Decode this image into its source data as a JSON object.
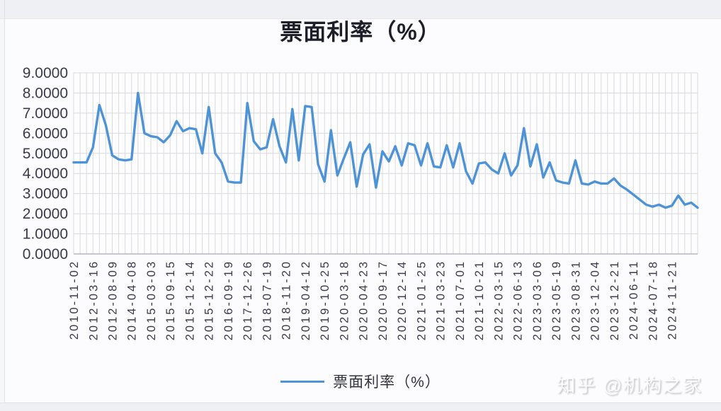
{
  "page": {
    "watermark": "知乎 @机构之家"
  },
  "chart_data": {
    "type": "line",
    "title": "票面利率（%）",
    "xlabel": "",
    "ylabel": "",
    "ylim": [
      0,
      9
    ],
    "grid": true,
    "legend_position": "bottom",
    "y_tick_labels": [
      "0.0000",
      "1.0000",
      "2.0000",
      "3.0000",
      "4.0000",
      "5.0000",
      "6.0000",
      "7.0000",
      "8.0000",
      "9.0000"
    ],
    "x_tick_labels": [
      "2010-11-02",
      "2012-03-16",
      "2012-08-09",
      "2014-04-08",
      "2015-03-03",
      "2015-09-15",
      "2015-12-14",
      "2015-12-22",
      "2016-09-19",
      "2017-12-26",
      "2018-07-19",
      "2018-11-20",
      "2019-04-12",
      "2019-10-25",
      "2020-03-18",
      "2020-04-23",
      "2020-09-17",
      "2020-12-14",
      "2021-01-25",
      "2021-03-23",
      "2021-07-01",
      "2021-10-21",
      "2022-03-15",
      "2022-06-13",
      "2023-03-06",
      "2023-05-19",
      "2023-08-31",
      "2023-12-04",
      "2023-12-21",
      "2024-06-11",
      "2024-07-18",
      "2024-11-21"
    ],
    "label_every": 3,
    "series": [
      {
        "name": "票面利率（%）",
        "color": "#4e93d6",
        "values": [
          4.55,
          4.55,
          4.55,
          5.3,
          7.4,
          6.4,
          4.9,
          4.7,
          4.65,
          4.7,
          8.0,
          6.0,
          5.85,
          5.8,
          5.55,
          5.9,
          6.6,
          6.1,
          6.25,
          6.2,
          5.0,
          7.3,
          5.0,
          4.55,
          3.6,
          3.55,
          3.55,
          7.5,
          5.6,
          5.2,
          5.3,
          6.7,
          5.35,
          4.55,
          7.2,
          4.65,
          7.35,
          7.3,
          4.45,
          3.6,
          6.15,
          3.9,
          4.75,
          5.55,
          3.35,
          4.95,
          5.45,
          3.3,
          5.1,
          4.6,
          5.35,
          4.4,
          5.5,
          5.4,
          4.4,
          5.5,
          4.35,
          4.3,
          5.4,
          4.3,
          5.5,
          4.1,
          3.5,
          4.5,
          4.55,
          4.2,
          4.0,
          5.0,
          3.9,
          4.4,
          6.25,
          4.35,
          5.45,
          3.8,
          4.55,
          3.65,
          3.55,
          3.5,
          4.65,
          3.5,
          3.45,
          3.6,
          3.5,
          3.5,
          3.75,
          3.4,
          3.2,
          2.95,
          2.7,
          2.45,
          2.35,
          2.45,
          2.3,
          2.4,
          2.9,
          2.45,
          2.55,
          2.3
        ]
      }
    ],
    "colors": {
      "line": "#4e93d6",
      "grid": "#d9dade",
      "axis_line": "#a8a8b2",
      "tick_text": "#3a3a4a",
      "plot_bg": "#fdfdfe"
    }
  }
}
